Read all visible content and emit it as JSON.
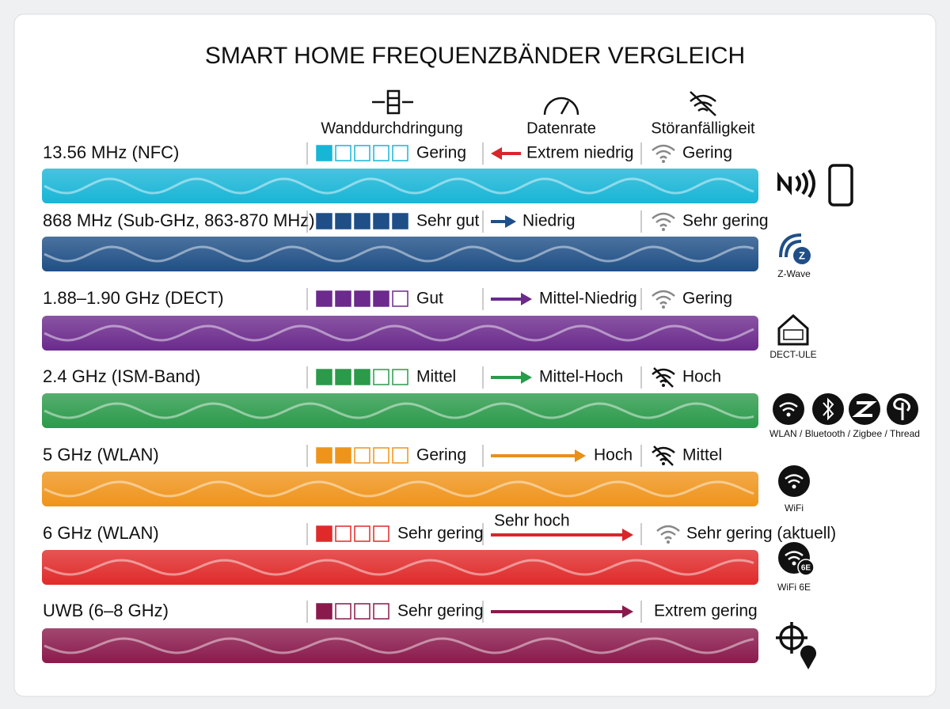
{
  "title": "SMART HOME FREQUENZBÄNDER VERGLEICH",
  "columns": [
    "Wanddurchdringung",
    "Datenrate",
    "Störanfälligkeit"
  ],
  "rows": [
    {
      "label": "13.56 MHz (NFC)",
      "color": "#19b5d6",
      "squares_filled": 1,
      "squares_total": 5,
      "penetration": "Gering",
      "datarate": "Extrem niedrig",
      "datarate_color": "#d8262a",
      "interference": "Gering",
      "interference_icon": "wifi"
    },
    {
      "label": "868 MHz (Sub-GHz, 863-870 MHz)",
      "color": "#1f4f86",
      "squares_filled": 5,
      "squares_total": 5,
      "penetration": "Sehr gut",
      "datarate": "Niedrig",
      "datarate_color": "#1f4f86",
      "interference": "Sehr gering",
      "interference_icon": "wifi",
      "badge": "Z",
      "caption": "Z-Wave"
    },
    {
      "label": "1.88–1.90 GHz (DECT)",
      "color": "#6b2a8c",
      "squares_filled": 4,
      "squares_total": 5,
      "penetration": "Gut",
      "datarate": "Mittel-Niedrig",
      "datarate_color": "#6b2a8c",
      "interference": "Gering",
      "interference_icon": "wifi",
      "caption": "DECT-ULE"
    },
    {
      "label": "2.4 GHz (ISM-Band)",
      "color": "#2b9a4a",
      "squares_filled": 3,
      "squares_total": 5,
      "penetration": "Mittel",
      "datarate": "Mittel-Hoch",
      "datarate_color": "#2b9a4a",
      "interference": "Hoch",
      "interference_icon": "wifi-off",
      "caption": "WLAN / Bluetooth / Zigbee / Thread"
    },
    {
      "label": "5 GHz (WLAN)",
      "color": "#ef941b",
      "squares_filled": 2,
      "squares_total": 5,
      "penetration": "Gering",
      "datarate": "Hoch",
      "datarate_color": "#e8901a",
      "interference": "Mittel",
      "interference_icon": "wifi-off",
      "caption": "WiFi"
    },
    {
      "label": "6 GHz (WLAN)",
      "color": "#e02a2a",
      "squares_filled": 1,
      "squares_total": 4,
      "penetration": "Sehr gering",
      "datarate": "Sehr hoch",
      "datarate_color": "#d8262a",
      "interference": "Sehr gering (aktuell)",
      "interference_icon": "wifi",
      "badge": "6E",
      "caption": "WiFi 6E"
    },
    {
      "label": "UWB (6–8 GHz)",
      "color": "#8a1a4c",
      "squares_filled": 1,
      "squares_total": 4,
      "penetration": "Sehr gering",
      "datarate_color": "#8a1a4c",
      "interference": "Extrem gering"
    }
  ]
}
